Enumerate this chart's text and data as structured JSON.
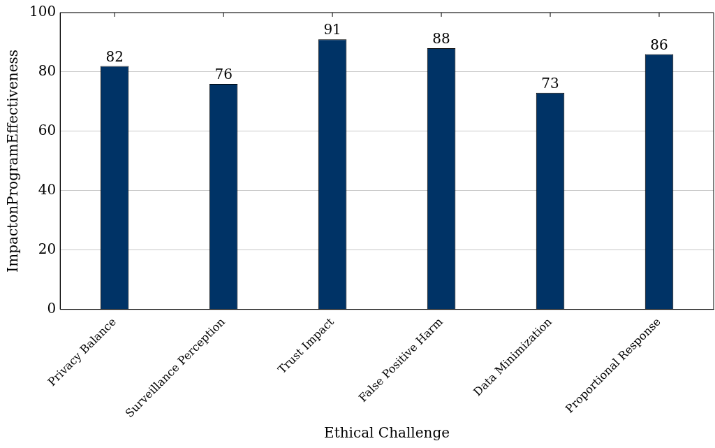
{
  "chart_data": {
    "type": "bar",
    "xlabel": "Ethical Challenge",
    "ylabel": "ImpactonProgramEffectiveness",
    "categories": [
      "Privacy Balance",
      "Surveillance Perception",
      "Trust Impact",
      "False Positive Harm",
      "Data Minimization",
      "Proportional Response"
    ],
    "values": [
      82,
      76,
      91,
      88,
      73,
      86
    ],
    "color": "#003366",
    "ylim": [
      0,
      100
    ],
    "yticks": [
      0,
      20,
      40,
      60,
      80,
      100
    ],
    "grid": "y",
    "data_labels": true
  }
}
